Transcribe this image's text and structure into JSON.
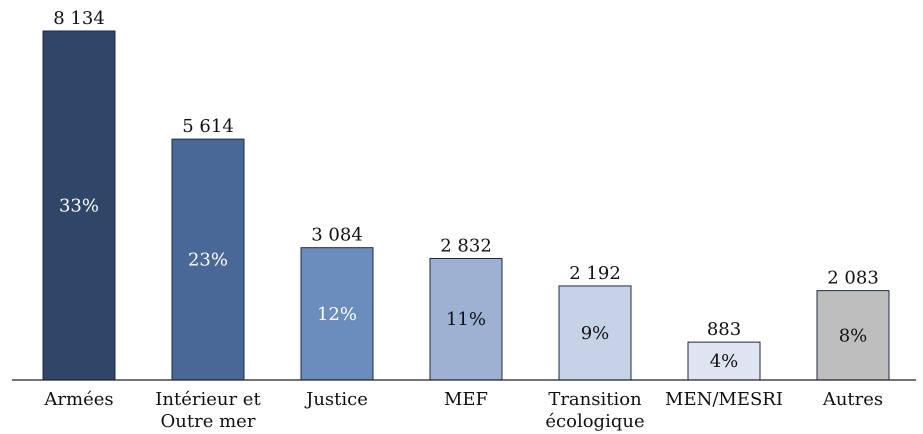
{
  "chart_data": {
    "type": "bar",
    "categories": [
      [
        "Armées"
      ],
      [
        "Intérieur et",
        "Outre mer"
      ],
      [
        "Justice"
      ],
      [
        "MEF"
      ],
      [
        "Transition",
        "écologique"
      ],
      [
        "MEN/MESRI"
      ],
      [
        "Autres"
      ]
    ],
    "values": [
      8134,
      5614,
      3084,
      2832,
      2192,
      883,
      2083
    ],
    "value_labels": [
      "8 134",
      "5 614",
      "3 084",
      "2 832",
      "2 192",
      "883",
      "2 083"
    ],
    "percent_labels": [
      "33%",
      "23%",
      "12%",
      "11%",
      "9%",
      "4%",
      "8%"
    ],
    "colors": [
      "#2f4668",
      "#4a6897",
      "#6b8dbd",
      "#9db1d2",
      "#c6d3e6",
      "#dee5f0",
      "#bebebe"
    ],
    "percent_label_colors": [
      "#ffffff",
      "#ffffff",
      "#ffffff",
      "#111111",
      "#111111",
      "#111111",
      "#111111"
    ],
    "title": "",
    "xlabel": "",
    "ylabel": "",
    "ylim": [
      0,
      8134
    ],
    "grid": false,
    "legend": "none"
  }
}
